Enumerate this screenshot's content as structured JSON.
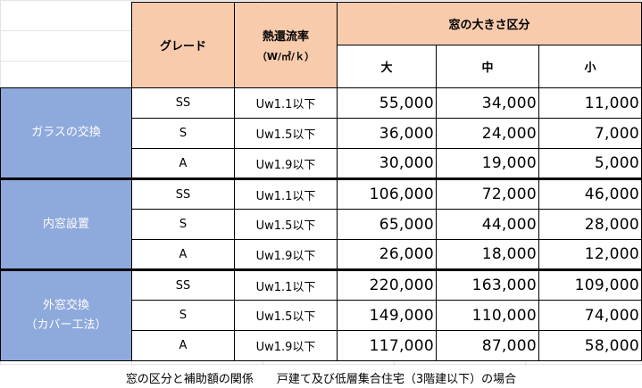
{
  "header": {
    "grade": "グレード",
    "heat_rate_title": "熱還流率",
    "heat_rate_unit": "（W/㎡/ｋ）",
    "size_group": "窓の大きさ区分",
    "sizes": [
      "大",
      "中",
      "小"
    ]
  },
  "categories": [
    {
      "label_lines": [
        "ガラスの交換"
      ],
      "rows": [
        {
          "grade": "SS",
          "rate": "Uw1.1以下",
          "values": [
            "55,000",
            "34,000",
            "11,000"
          ]
        },
        {
          "grade": "S",
          "rate": "Uw1.5以下",
          "values": [
            "36,000",
            "24,000",
            "7,000"
          ]
        },
        {
          "grade": "A",
          "rate": "Uw1.9以下",
          "values": [
            "30,000",
            "19,000",
            "5,000"
          ]
        }
      ]
    },
    {
      "label_lines": [
        "内窓設置"
      ],
      "rows": [
        {
          "grade": "SS",
          "rate": "Uw1.1以下",
          "values": [
            "106,000",
            "72,000",
            "46,000"
          ]
        },
        {
          "grade": "S",
          "rate": "Uw1.5以下",
          "values": [
            "65,000",
            "44,000",
            "28,000"
          ]
        },
        {
          "grade": "A",
          "rate": "Uw1.9以下",
          "values": [
            "26,000",
            "18,000",
            "12,000"
          ]
        }
      ]
    },
    {
      "label_lines": [
        "外窓交換",
        "（カバー工法）"
      ],
      "rows": [
        {
          "grade": "SS",
          "rate": "Uw1.1以下",
          "values": [
            "220,000",
            "163,000",
            "109,000"
          ]
        },
        {
          "grade": "S",
          "rate": "Uw1.5以下",
          "values": [
            "149,000",
            "110,000",
            "74,000"
          ]
        },
        {
          "grade": "A",
          "rate": "Uw1.9以下",
          "values": [
            "117,000",
            "87,000",
            "58,000"
          ]
        }
      ]
    }
  ],
  "caption": "窓の区分と補助額の関係　　戸建て及び低層集合住宅（3階建以下）の場合",
  "colors": {
    "header_bg": "#f8cbad",
    "category_bg": "#8ea9db",
    "category_text": "#ffffff"
  }
}
